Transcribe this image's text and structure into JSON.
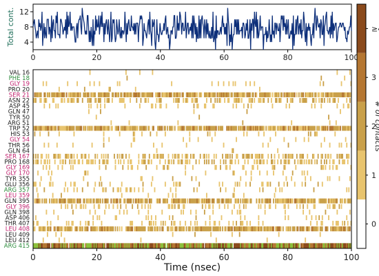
{
  "chart_data": [
    {
      "type": "line",
      "ylabel": "Total cont.",
      "xlim": [
        0,
        100
      ],
      "ylim": [
        2,
        14
      ],
      "xticks": [
        0,
        20,
        40,
        60,
        80,
        100
      ],
      "yticks": [
        4,
        8,
        12
      ],
      "color": "#0d2f7a",
      "series_summary": {
        "n_points": 500,
        "mean": 7.5,
        "min": 2,
        "max": 13
      }
    },
    {
      "type": "heatmap",
      "xlabel": "Time (nsec)",
      "xlim": [
        0,
        100
      ],
      "xticks": [
        0,
        20,
        40,
        60,
        80,
        100
      ],
      "residues": [
        {
          "label": "VAL 16",
          "color": "#1a1a1a",
          "mean": 0.02
        },
        {
          "label": "PHE 18",
          "color": "#2a8a3a",
          "mean": 0.04
        },
        {
          "label": "GLY 19",
          "color": "#c0206e",
          "mean": 0.15
        },
        {
          "label": "PRO 20",
          "color": "#1a1a1a",
          "mean": 0.06
        },
        {
          "label": "SER 21",
          "color": "#c0206e",
          "mean": 1.85
        },
        {
          "label": "ASN 22",
          "color": "#1a1a1a",
          "mean": 0.8
        },
        {
          "label": "ASP 45",
          "color": "#1a1a1a",
          "mean": 0.25
        },
        {
          "label": "GLN 47",
          "color": "#1a1a1a",
          "mean": 0.03
        },
        {
          "label": "TYR 50",
          "color": "#1a1a1a",
          "mean": 0.02
        },
        {
          "label": "ARG 51",
          "color": "#1a1a1a",
          "mean": 0.05
        },
        {
          "label": "TRP 52",
          "color": "#1a1a1a",
          "mean": 1.9
        },
        {
          "label": "HIS 53",
          "color": "#1a1a1a",
          "mean": 0.2
        },
        {
          "label": "GLY 54",
          "color": "#c0206e",
          "mean": 0.1
        },
        {
          "label": "THR 56",
          "color": "#1a1a1a",
          "mean": 0.12
        },
        {
          "label": "GLN 64",
          "color": "#1a1a1a",
          "mean": 0.04
        },
        {
          "label": "SER 167",
          "color": "#c0206e",
          "mean": 1.05
        },
        {
          "label": "PRO 168",
          "color": "#1a1a1a",
          "mean": 0.95
        },
        {
          "label": "GLY 169",
          "color": "#c0206e",
          "mean": 0.3
        },
        {
          "label": "GLY 170",
          "color": "#c0206e",
          "mean": 0.12
        },
        {
          "label": "TYR 355",
          "color": "#1a1a1a",
          "mean": 0.1
        },
        {
          "label": "GLU 356",
          "color": "#1a1a1a",
          "mean": 0.35
        },
        {
          "label": "ARG 357",
          "color": "#2a8a3a",
          "mean": 0.3
        },
        {
          "label": "LEU 359",
          "color": "#c0206e",
          "mean": 0.12
        },
        {
          "label": "GLN 395",
          "color": "#1a1a1a",
          "mean": 1.7
        },
        {
          "label": "GLY 396",
          "color": "#c0206e",
          "mean": 0.5
        },
        {
          "label": "GLN 398",
          "color": "#1a1a1a",
          "mean": 0.2
        },
        {
          "label": "ASP 406",
          "color": "#1a1a1a",
          "mean": 0.15
        },
        {
          "label": "THR 407",
          "color": "#1a1a1a",
          "mean": 0.55
        },
        {
          "label": "LEU 408",
          "color": "#c0206e",
          "mean": 1.8
        },
        {
          "label": "LEU 409",
          "color": "#1a1a1a",
          "mean": 0.05
        },
        {
          "label": "LEU 412",
          "color": "#1a1a1a",
          "mean": 0.03
        },
        {
          "label": "ARG 415",
          "color": "#2a8a3a",
          "mean": 3.2
        }
      ]
    }
  ],
  "colorbar": {
    "label": "# of contacts",
    "ticks": [
      "0",
      "1",
      "2",
      "3",
      "≥4"
    ],
    "colors": [
      "#ffffff",
      "#e8c46e",
      "#c9a04a",
      "#b57732",
      "#8a4a1c"
    ]
  }
}
